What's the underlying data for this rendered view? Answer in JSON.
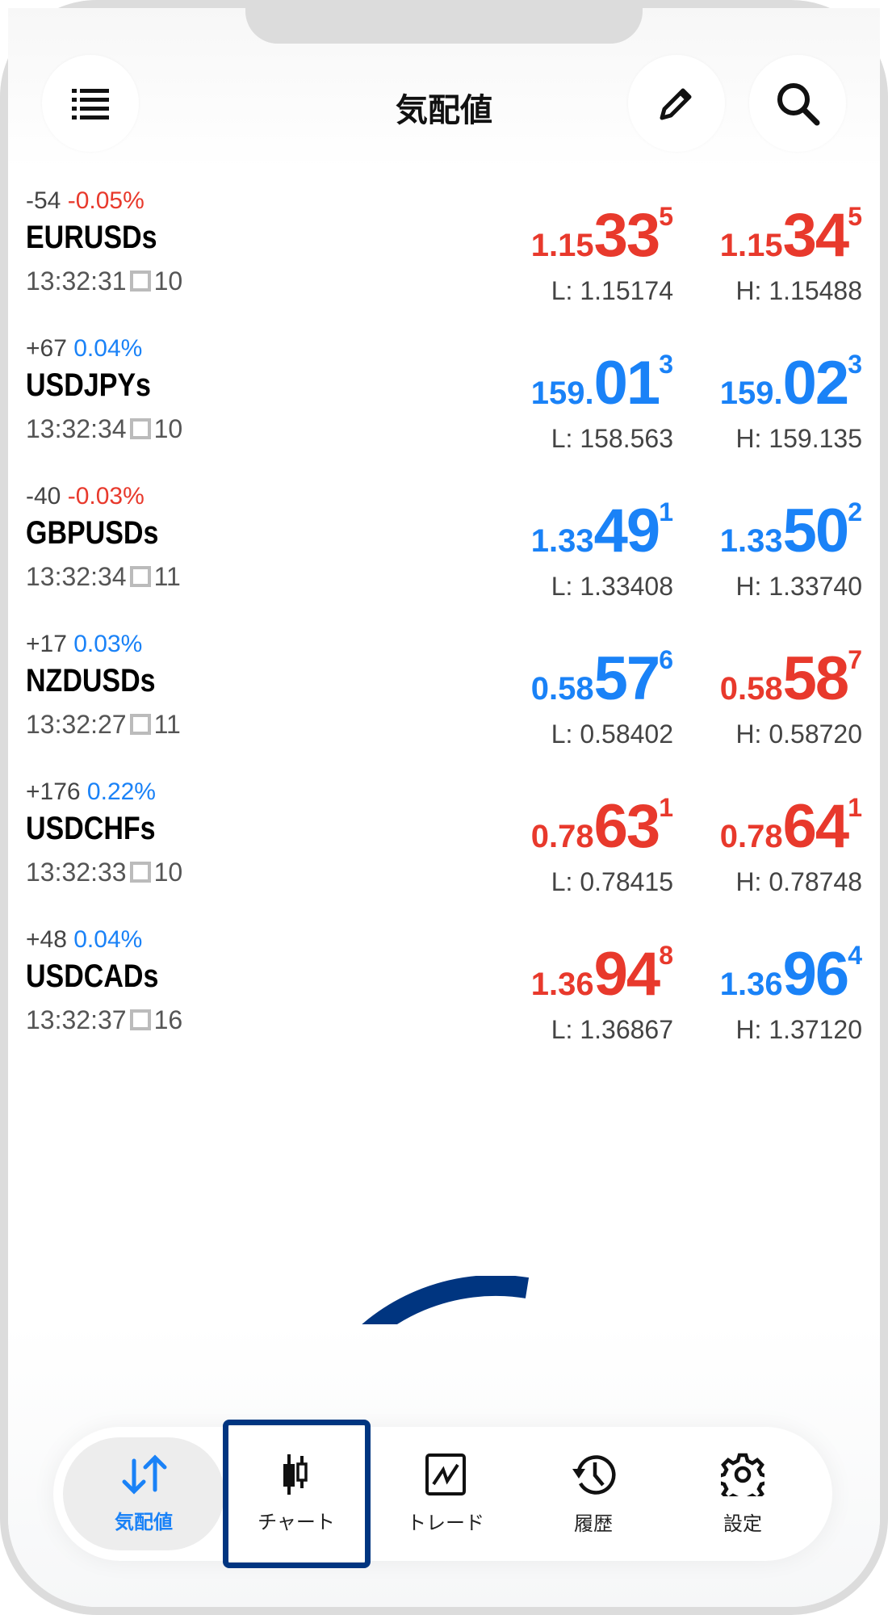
{
  "header": {
    "title": "気配値",
    "icons": [
      "list-icon",
      "pencil-icon",
      "search-icon"
    ]
  },
  "colors": {
    "up": "#1a82f7",
    "down": "#e8392c",
    "highlight": "#003580"
  },
  "quotes": [
    {
      "symbol": "EURUSDs",
      "change_points": "-54",
      "change_pct": "-0.05%",
      "pct_dir": "down",
      "time": "13:32:31",
      "spread": "10",
      "bid": {
        "small": "1.15",
        "big": "33",
        "pip": "5",
        "dir": "down"
      },
      "ask": {
        "small": "1.15",
        "big": "34",
        "pip": "5",
        "dir": "down"
      },
      "low": "L: 1.15174",
      "high": "H: 1.15488"
    },
    {
      "symbol": "USDJPYs",
      "change_points": "+67",
      "change_pct": "0.04%",
      "pct_dir": "up",
      "time": "13:32:34",
      "spread": "10",
      "bid": {
        "small": "159.",
        "big": "01",
        "pip": "3",
        "dir": "up"
      },
      "ask": {
        "small": "159.",
        "big": "02",
        "pip": "3",
        "dir": "up"
      },
      "low": "L: 158.563",
      "high": "H: 159.135"
    },
    {
      "symbol": "GBPUSDs",
      "change_points": "-40",
      "change_pct": "-0.03%",
      "pct_dir": "down",
      "time": "13:32:34",
      "spread": "11",
      "bid": {
        "small": "1.33",
        "big": "49",
        "pip": "1",
        "dir": "up"
      },
      "ask": {
        "small": "1.33",
        "big": "50",
        "pip": "2",
        "dir": "up"
      },
      "low": "L: 1.33408",
      "high": "H: 1.33740"
    },
    {
      "symbol": "NZDUSDs",
      "change_points": "+17",
      "change_pct": "0.03%",
      "pct_dir": "up",
      "time": "13:32:27",
      "spread": "11",
      "bid": {
        "small": "0.58",
        "big": "57",
        "pip": "6",
        "dir": "up"
      },
      "ask": {
        "small": "0.58",
        "big": "58",
        "pip": "7",
        "dir": "down"
      },
      "low": "L: 0.58402",
      "high": "H: 0.58720"
    },
    {
      "symbol": "USDCHFs",
      "change_points": "+176",
      "change_pct": "0.22%",
      "pct_dir": "up",
      "time": "13:32:33",
      "spread": "10",
      "bid": {
        "small": "0.78",
        "big": "63",
        "pip": "1",
        "dir": "down"
      },
      "ask": {
        "small": "0.78",
        "big": "64",
        "pip": "1",
        "dir": "down"
      },
      "low": "L: 0.78415",
      "high": "H: 0.78748"
    },
    {
      "symbol": "USDCADs",
      "change_points": "+48",
      "change_pct": "0.04%",
      "pct_dir": "up",
      "time": "13:32:37",
      "spread": "16",
      "bid": {
        "small": "1.36",
        "big": "94",
        "pip": "8",
        "dir": "down"
      },
      "ask": {
        "small": "1.36",
        "big": "96",
        "pip": "4",
        "dir": "up"
      },
      "low": "L: 1.36867",
      "high": "H: 1.37120"
    }
  ],
  "nav": [
    {
      "label": "気配値",
      "icon": "quotes-arrows-icon",
      "active": true
    },
    {
      "label": "チャート",
      "icon": "candlestick-chart-icon",
      "highlighted": true
    },
    {
      "label": "トレード",
      "icon": "trade-chart-icon"
    },
    {
      "label": "履歴",
      "icon": "history-icon"
    },
    {
      "label": "設定",
      "icon": "gear-icon"
    }
  ]
}
